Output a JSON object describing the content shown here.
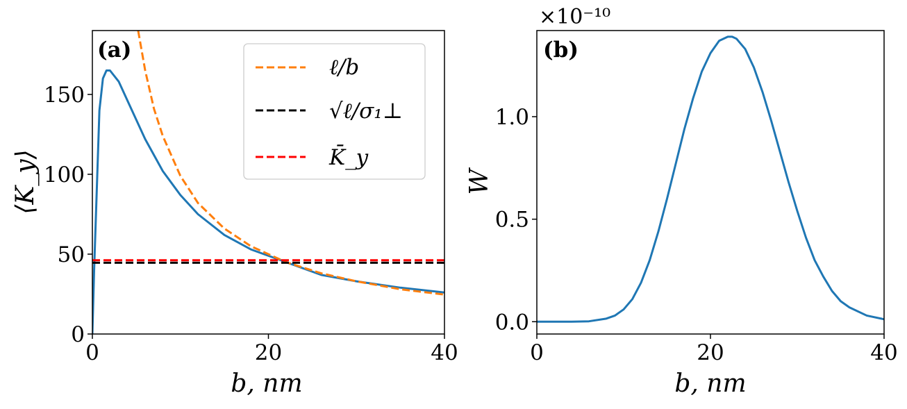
{
  "chart_data": [
    {
      "type": "line",
      "panel_label": "(a)",
      "xlabel": "b, nm",
      "ylabel": "⟨K_y⟩",
      "xlim": [
        0,
        40
      ],
      "ylim": [
        0,
        190
      ],
      "xticks": [
        "0",
        "20",
        "40"
      ],
      "yticks": [
        "0",
        "50",
        "100",
        "150"
      ],
      "legend_position": "top-right",
      "series": [
        {
          "name": "",
          "color": "#1f77b4",
          "dash": "solid",
          "x": [
            0,
            0.2,
            0.5,
            0.8,
            1.2,
            1.6,
            2.0,
            3,
            4,
            6,
            8,
            10,
            12,
            15,
            18,
            22,
            26,
            30,
            35,
            40
          ],
          "y": [
            0,
            40,
            90,
            140,
            160,
            165,
            165,
            158,
            146,
            122,
            102,
            87,
            75,
            62,
            53,
            45,
            37,
            33,
            29,
            26
          ]
        },
        {
          "name": "ℓ/b",
          "color": "#ff7f0e",
          "dash": "dashed",
          "x": [
            5.2,
            6,
            7,
            8,
            10,
            12,
            15,
            18,
            22,
            26,
            30,
            35,
            40
          ],
          "y": [
            190,
            165,
            141,
            124,
            99,
            82,
            66,
            55,
            45,
            38,
            33,
            28,
            24.7
          ]
        },
        {
          "name": "√ℓ/σ₁⊥",
          "color": "#000000",
          "dash": "dashed",
          "x": [
            0,
            40
          ],
          "y": [
            44.6,
            44.6
          ]
        },
        {
          "name": "K̄_y",
          "color": "#ff0000",
          "dash": "dashed",
          "x": [
            0,
            40
          ],
          "y": [
            46.2,
            46.2
          ]
        }
      ]
    },
    {
      "type": "line",
      "panel_label": "(b)",
      "xlabel": "b, nm",
      "ylabel": "W",
      "scale_note": "×10⁻¹⁰",
      "xlim": [
        0,
        40
      ],
      "ylim": [
        -0.06,
        1.42
      ],
      "xticks": [
        "0",
        "20",
        "40"
      ],
      "yticks": [
        "0.0",
        "0.5",
        "1.0"
      ],
      "series": [
        {
          "name": "",
          "color": "#1f77b4",
          "dash": "solid",
          "x": [
            0,
            2,
            4,
            6,
            8,
            9,
            10,
            11,
            12,
            13,
            14,
            15,
            16,
            17,
            18,
            19,
            20,
            21,
            22,
            22.5,
            23,
            24,
            25,
            26,
            27,
            28,
            29,
            30,
            31,
            32,
            33,
            34,
            35,
            36,
            38,
            40
          ],
          "y": [
            0,
            0,
            0,
            0.002,
            0.015,
            0.03,
            0.06,
            0.11,
            0.19,
            0.3,
            0.44,
            0.6,
            0.77,
            0.94,
            1.09,
            1.22,
            1.31,
            1.37,
            1.39,
            1.39,
            1.38,
            1.33,
            1.24,
            1.12,
            0.98,
            0.83,
            0.68,
            0.54,
            0.41,
            0.3,
            0.22,
            0.15,
            0.1,
            0.07,
            0.03,
            0.012
          ]
        }
      ]
    }
  ]
}
